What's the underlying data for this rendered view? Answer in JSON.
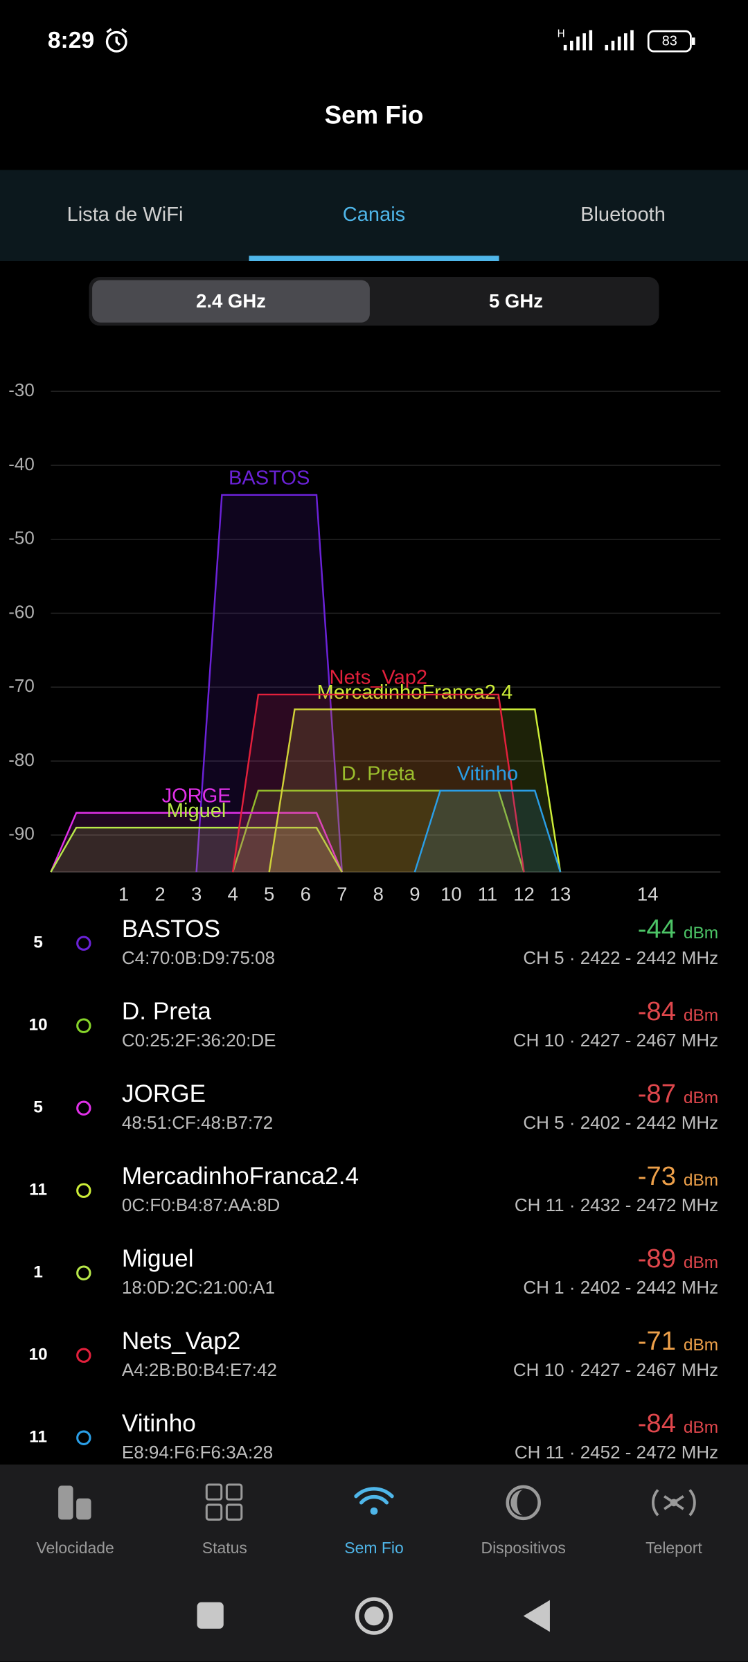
{
  "status_bar": {
    "time": "8:29",
    "network": "H",
    "battery": 83
  },
  "header": {
    "title": "Sem Fio"
  },
  "tabs": {
    "items": [
      "Lista de WiFi",
      "Canais",
      "Bluetooth"
    ],
    "active": 1
  },
  "band_toggle": {
    "options": [
      "2.4 GHz",
      "5 GHz"
    ],
    "selected": 0
  },
  "chart_data": {
    "type": "channel",
    "ylim": [
      -95,
      -30
    ],
    "yticks": [
      -30,
      -40,
      -50,
      -60,
      -70,
      -80,
      -90
    ],
    "xlim": [
      2402,
      2494
    ],
    "xticks": [
      {
        "value": 2412,
        "label": "1"
      },
      {
        "value": 2417,
        "label": "2"
      },
      {
        "value": 2422,
        "label": "3"
      },
      {
        "value": 2427,
        "label": "4"
      },
      {
        "value": 2432,
        "label": "5"
      },
      {
        "value": 2437,
        "label": "6"
      },
      {
        "value": 2442,
        "label": "7"
      },
      {
        "value": 2447,
        "label": "8"
      },
      {
        "value": 2452,
        "label": "9"
      },
      {
        "value": 2457,
        "label": "10"
      },
      {
        "value": 2462,
        "label": "11"
      },
      {
        "value": 2467,
        "label": "12"
      },
      {
        "value": 2472,
        "label": "13"
      },
      {
        "value": 2484,
        "label": "14"
      }
    ],
    "grid": true,
    "series": [
      {
        "name": "BASTOS",
        "color": "#6b22d8",
        "values": [
          -44
        ],
        "range": [
          2422,
          2442
        ]
      },
      {
        "name": "D. Preta",
        "color": "#86d42a",
        "values": [
          -84
        ],
        "range": [
          2427,
          2467
        ]
      },
      {
        "name": "JORGE",
        "color": "#e030e8",
        "values": [
          -87
        ],
        "range": [
          2402,
          2442
        ]
      },
      {
        "name": "MercadinhoFranca2.4",
        "color": "#cdee38",
        "values": [
          -73
        ],
        "range": [
          2432,
          2472
        ]
      },
      {
        "name": "Miguel",
        "color": "#b8e84a",
        "values": [
          -89
        ],
        "range": [
          2402,
          2442
        ]
      },
      {
        "name": "Nets_Vap2",
        "color": "#e3203c",
        "values": [
          -71
        ],
        "range": [
          2427,
          2467
        ]
      },
      {
        "name": "Vitinho",
        "color": "#2a9ee6",
        "values": [
          -84
        ],
        "range": [
          2452,
          2472
        ]
      }
    ]
  },
  "list": {
    "unit": "dBm",
    "rows": [
      {
        "channel": 5,
        "bssid": "C4:70:0B:D9:75:08",
        "band": "CH 5 · 2422 - 2442 MHz",
        "signal_color": "#4cc466"
      },
      {
        "channel": 10,
        "bssid": "C0:25:2F:36:20:DE",
        "band": "CH 10 · 2427 - 2467 MHz",
        "signal_color": "#e0474c"
      },
      {
        "channel": 5,
        "bssid": "48:51:CF:48:B7:72",
        "band": "CH 5 · 2402 - 2442 MHz",
        "signal_color": "#e0474c"
      },
      {
        "channel": 11,
        "bssid": "0C:F0:B4:87:AA:8D",
        "band": "CH 11 · 2432 - 2472 MHz",
        "signal_color": "#eda04a"
      },
      {
        "channel": 1,
        "bssid": "18:0D:2C:21:00:A1",
        "band": "CH 1 · 2402 - 2442 MHz",
        "signal_color": "#e0474c"
      },
      {
        "channel": 10,
        "bssid": "A4:2B:B0:B4:E7:42",
        "band": "CH 10 · 2427 - 2467 MHz",
        "signal_color": "#eda04a"
      },
      {
        "channel": 11,
        "bssid": "E8:94:F6:F6:3A:28",
        "band": "CH 11 · 2452 - 2472 MHz",
        "signal_color": "#e0474c"
      }
    ]
  },
  "bottom_nav": {
    "items": [
      "Velocidade",
      "Status",
      "Sem Fio",
      "Dispositivos",
      "Teleport"
    ],
    "active": 2
  }
}
